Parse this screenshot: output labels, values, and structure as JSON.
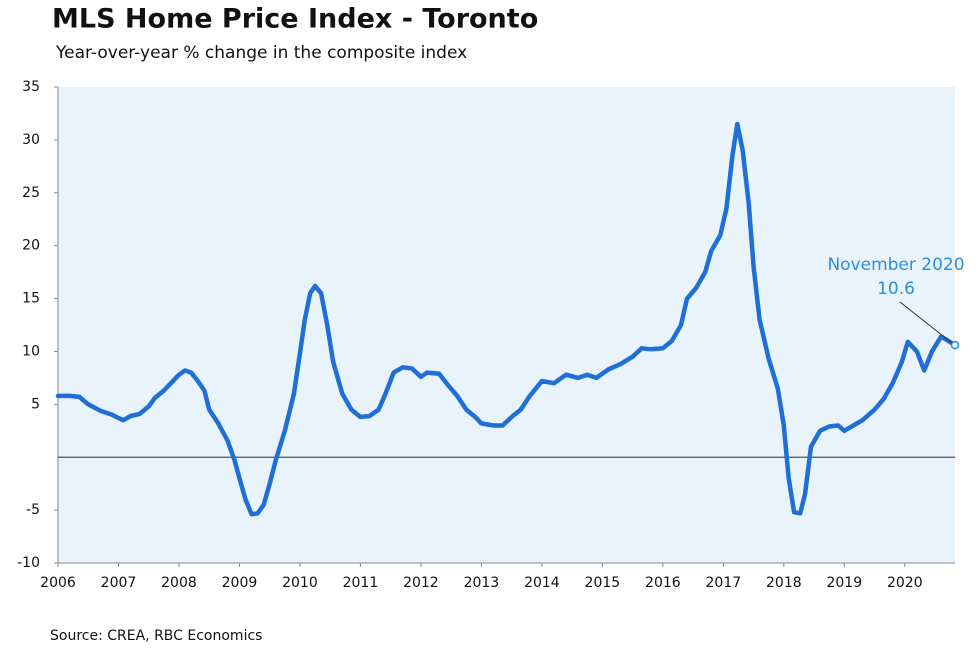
{
  "chart_data": {
    "type": "line",
    "title": "MLS Home Price Index - Toronto",
    "subtitle": "Year-over-year % change in the composite index",
    "source": "Source: CREA, RBC Economics",
    "annotation": "November 2020",
    "color": "#1f6fd6",
    "x": [
      2006.0,
      2006.2,
      2006.35,
      2006.5,
      2006.7,
      2006.9,
      2007.0,
      2007.08,
      2007.2,
      2007.35,
      2007.5,
      2007.6,
      2007.75,
      2007.9,
      2008.0,
      2008.1,
      2008.2,
      2008.3,
      2008.42,
      2008.5,
      2008.65,
      2008.8,
      2008.92,
      2009.0,
      2009.1,
      2009.2,
      2009.3,
      2009.4,
      2009.5,
      2009.6,
      2009.75,
      2009.9,
      2010.0,
      2010.08,
      2010.17,
      2010.25,
      2010.35,
      2010.45,
      2010.55,
      2010.7,
      2010.85,
      2011.0,
      2011.15,
      2011.3,
      2011.4,
      2011.55,
      2011.7,
      2011.85,
      2012.0,
      2012.1,
      2012.3,
      2012.45,
      2012.6,
      2012.75,
      2012.9,
      2013.0,
      2013.2,
      2013.35,
      2013.5,
      2013.65,
      2013.8,
      2014.0,
      2014.2,
      2014.4,
      2014.6,
      2014.75,
      2014.9,
      2015.1,
      2015.3,
      2015.5,
      2015.65,
      2015.8,
      2016.0,
      2016.15,
      2016.3,
      2016.4,
      2016.55,
      2016.7,
      2016.8,
      2016.95,
      2017.05,
      2017.15,
      2017.23,
      2017.32,
      2017.42,
      2017.5,
      2017.6,
      2017.75,
      2017.9,
      2018.0,
      2018.08,
      2018.17,
      2018.27,
      2018.35,
      2018.45,
      2018.6,
      2018.75,
      2018.9,
      2019.0,
      2019.15,
      2019.3,
      2019.5,
      2019.65,
      2019.8,
      2019.95,
      2020.05,
      2020.2,
      2020.32,
      2020.45,
      2020.6,
      2020.72,
      2020.83
    ],
    "values": [
      5.8,
      5.8,
      5.7,
      5.0,
      4.4,
      4.0,
      3.7,
      3.5,
      3.9,
      4.1,
      4.8,
      5.6,
      6.3,
      7.2,
      7.8,
      8.2,
      8.0,
      7.3,
      6.3,
      4.5,
      3.2,
      1.6,
      -0.3,
      -2.0,
      -4.0,
      -5.4,
      -5.3,
      -4.5,
      -2.5,
      -0.3,
      2.5,
      6.0,
      9.8,
      13.0,
      15.5,
      16.2,
      15.5,
      12.5,
      9.0,
      6.0,
      4.5,
      3.8,
      3.9,
      4.5,
      5.8,
      8.0,
      8.5,
      8.4,
      7.6,
      8.0,
      7.9,
      6.8,
      5.8,
      4.5,
      3.8,
      3.2,
      3.0,
      3.0,
      3.8,
      4.5,
      5.8,
      7.2,
      7.0,
      7.8,
      7.5,
      7.8,
      7.5,
      8.3,
      8.8,
      9.5,
      10.3,
      10.2,
      10.3,
      11.0,
      12.5,
      15.0,
      16.0,
      17.5,
      19.5,
      21.0,
      23.5,
      28.5,
      31.5,
      29.0,
      24.0,
      18.0,
      13.0,
      9.3,
      6.5,
      3.0,
      -2.0,
      -5.2,
      -5.3,
      -3.5,
      1.0,
      2.5,
      2.9,
      3.0,
      2.5,
      3.0,
      3.5,
      4.5,
      5.5,
      7.0,
      9.0,
      10.9,
      10.0,
      8.2,
      10.0,
      11.4,
      11.0,
      10.6
    ],
    "xlim": [
      2006,
      2020.83
    ],
    "xticks": [
      2006,
      2007,
      2008,
      2009,
      2010,
      2011,
      2012,
      2013,
      2014,
      2015,
      2016,
      2017,
      2018,
      2019,
      2020
    ],
    "ylim": [
      -10,
      35
    ],
    "yticks": [
      -10,
      -5,
      5,
      10,
      15,
      20,
      25,
      30,
      35
    ]
  }
}
